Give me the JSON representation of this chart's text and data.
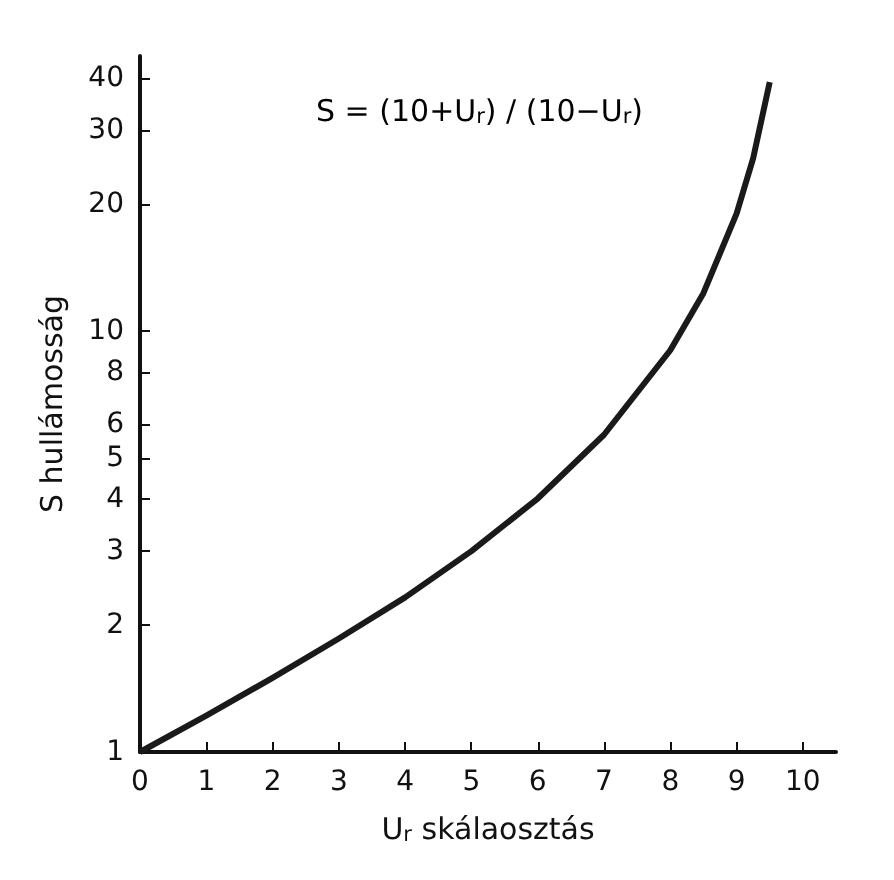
{
  "chart_data": {
    "type": "line",
    "xlabel": "U$_{r}$ skálaosztás",
    "ylabel": "S hullámosság",
    "annotations": [
      "S = (10+U$_{r}$) / (10−U$_{r}$)"
    ],
    "x": [
      0,
      1,
      2,
      3,
      4,
      5,
      6,
      7,
      8,
      8.5,
      9,
      9.25,
      9.5
    ],
    "series": [
      {
        "color": "#1a1a1a",
        "values": [
          1,
          1.22,
          1.5,
          1.86,
          2.33,
          3,
          4,
          5.67,
          9,
          12.3,
          19,
          25.7,
          39
        ]
      }
    ],
    "xlim": [
      0,
      10.5
    ],
    "xticks": [
      0,
      1,
      2,
      3,
      4,
      5,
      6,
      7,
      8,
      9,
      10
    ],
    "ylim": [
      1,
      45
    ],
    "yticks": [
      1,
      2,
      3,
      4,
      5,
      6,
      8,
      10,
      20,
      30,
      40
    ],
    "log": "y",
    "grid": false,
    "marker": "none",
    "line_style": "solid"
  }
}
